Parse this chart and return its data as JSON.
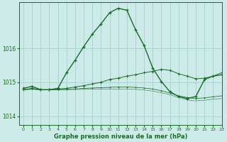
{
  "title": "Graphe pression niveau de la mer (hPa)",
  "bg_color": "#cceae7",
  "grid_color": "#aad4d0",
  "line_color": "#1a6b2a",
  "xlim": [
    -0.5,
    23
  ],
  "ylim": [
    1013.75,
    1017.35
  ],
  "yticks": [
    1014,
    1015,
    1016
  ],
  "xticks": [
    0,
    1,
    2,
    3,
    4,
    5,
    6,
    7,
    8,
    9,
    10,
    11,
    12,
    13,
    14,
    15,
    16,
    17,
    18,
    19,
    20,
    21,
    22,
    23
  ],
  "series1_x": [
    0,
    1,
    2,
    3,
    4,
    5,
    6,
    7,
    8,
    9,
    10,
    11,
    12,
    13,
    14,
    15,
    16,
    17,
    18,
    19,
    20,
    21,
    22,
    23
  ],
  "series1_y": [
    1014.82,
    1014.88,
    1014.78,
    1014.78,
    1014.82,
    1015.28,
    1015.65,
    1016.05,
    1016.42,
    1016.72,
    1017.05,
    1017.18,
    1017.12,
    1016.55,
    1016.08,
    1015.42,
    1015.02,
    1014.72,
    1014.58,
    1014.52,
    1014.58,
    1015.08,
    1015.18,
    1015.22
  ],
  "series2_x": [
    0,
    1,
    2,
    3,
    4,
    5,
    6,
    7,
    8,
    9,
    10,
    11,
    12,
    13,
    14,
    15,
    16,
    17,
    18,
    19,
    20,
    21,
    22,
    23
  ],
  "series2_y": [
    1014.78,
    1014.82,
    1014.78,
    1014.78,
    1014.8,
    1014.82,
    1014.86,
    1014.9,
    1014.95,
    1015.0,
    1015.08,
    1015.12,
    1015.18,
    1015.22,
    1015.28,
    1015.32,
    1015.38,
    1015.35,
    1015.25,
    1015.18,
    1015.1,
    1015.12,
    1015.18,
    1015.28
  ],
  "series3_x": [
    0,
    1,
    2,
    3,
    4,
    5,
    6,
    7,
    8,
    9,
    10,
    11,
    12,
    13,
    14,
    15,
    16,
    17,
    18,
    19,
    20,
    21,
    22,
    23
  ],
  "series3_y": [
    1014.78,
    1014.8,
    1014.78,
    1014.78,
    1014.78,
    1014.79,
    1014.8,
    1014.82,
    1014.83,
    1014.84,
    1014.85,
    1014.86,
    1014.86,
    1014.85,
    1014.83,
    1014.8,
    1014.75,
    1014.68,
    1014.6,
    1014.55,
    1014.52,
    1014.54,
    1014.57,
    1014.6
  ],
  "series4_x": [
    0,
    1,
    2,
    3,
    4,
    5,
    6,
    7,
    8,
    9,
    10,
    11,
    12,
    13,
    14,
    15,
    16,
    17,
    18,
    19,
    20,
    21,
    22,
    23
  ],
  "series4_y": [
    1014.78,
    1014.79,
    1014.78,
    1014.78,
    1014.78,
    1014.78,
    1014.79,
    1014.79,
    1014.8,
    1014.8,
    1014.8,
    1014.8,
    1014.8,
    1014.79,
    1014.77,
    1014.74,
    1014.69,
    1014.63,
    1014.55,
    1014.48,
    1014.45,
    1014.47,
    1014.5,
    1014.52
  ]
}
